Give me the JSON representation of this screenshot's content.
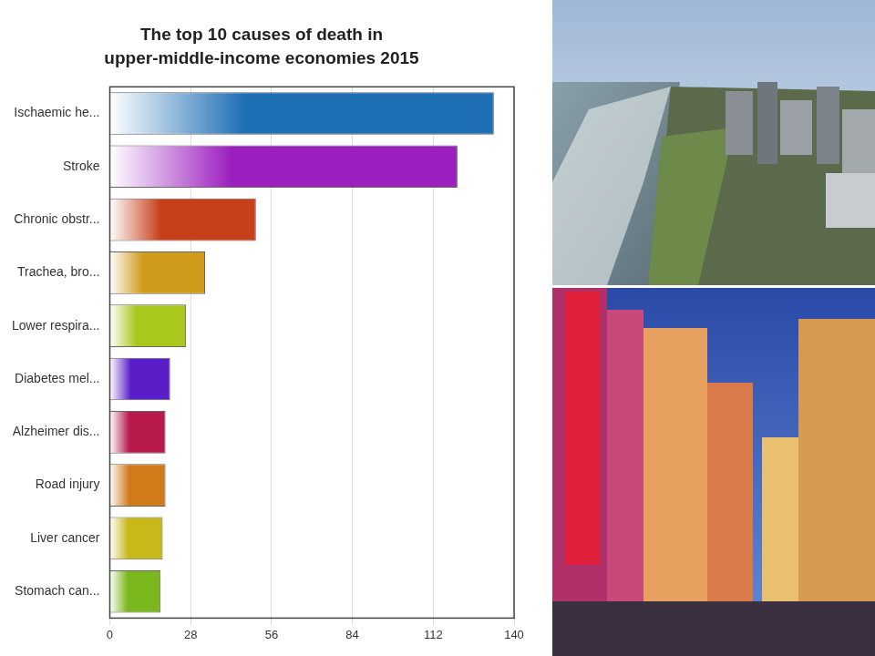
{
  "chart_data": {
    "type": "bar",
    "orientation": "horizontal",
    "title": [
      "The top 10 causes of death in",
      "upper-middle-income economies 2015"
    ],
    "categories": [
      "Ischaemic he...",
      "Stroke",
      "Chronic obstr...",
      "Trachea, bro...",
      "Lower respira...",
      "Diabetes mel...",
      "Alzheimer dis...",
      "Road injury",
      "Liver cancer",
      "Stomach can..."
    ],
    "values": [
      133,
      120.4,
      50.6,
      33,
      26.4,
      20.9,
      19.3,
      19.3,
      18.3,
      17.6
    ],
    "colors": [
      "#1f6fb5",
      "#9b1fbf",
      "#c7401a",
      "#d09a1a",
      "#a8c81e",
      "#5a1ec8",
      "#b81a4c",
      "#d07a1a",
      "#c8b81a",
      "#7ab81e"
    ],
    "xlim": [
      0,
      140
    ],
    "xticks": [
      0,
      28,
      56,
      84,
      112,
      140
    ],
    "grid": true
  }
}
